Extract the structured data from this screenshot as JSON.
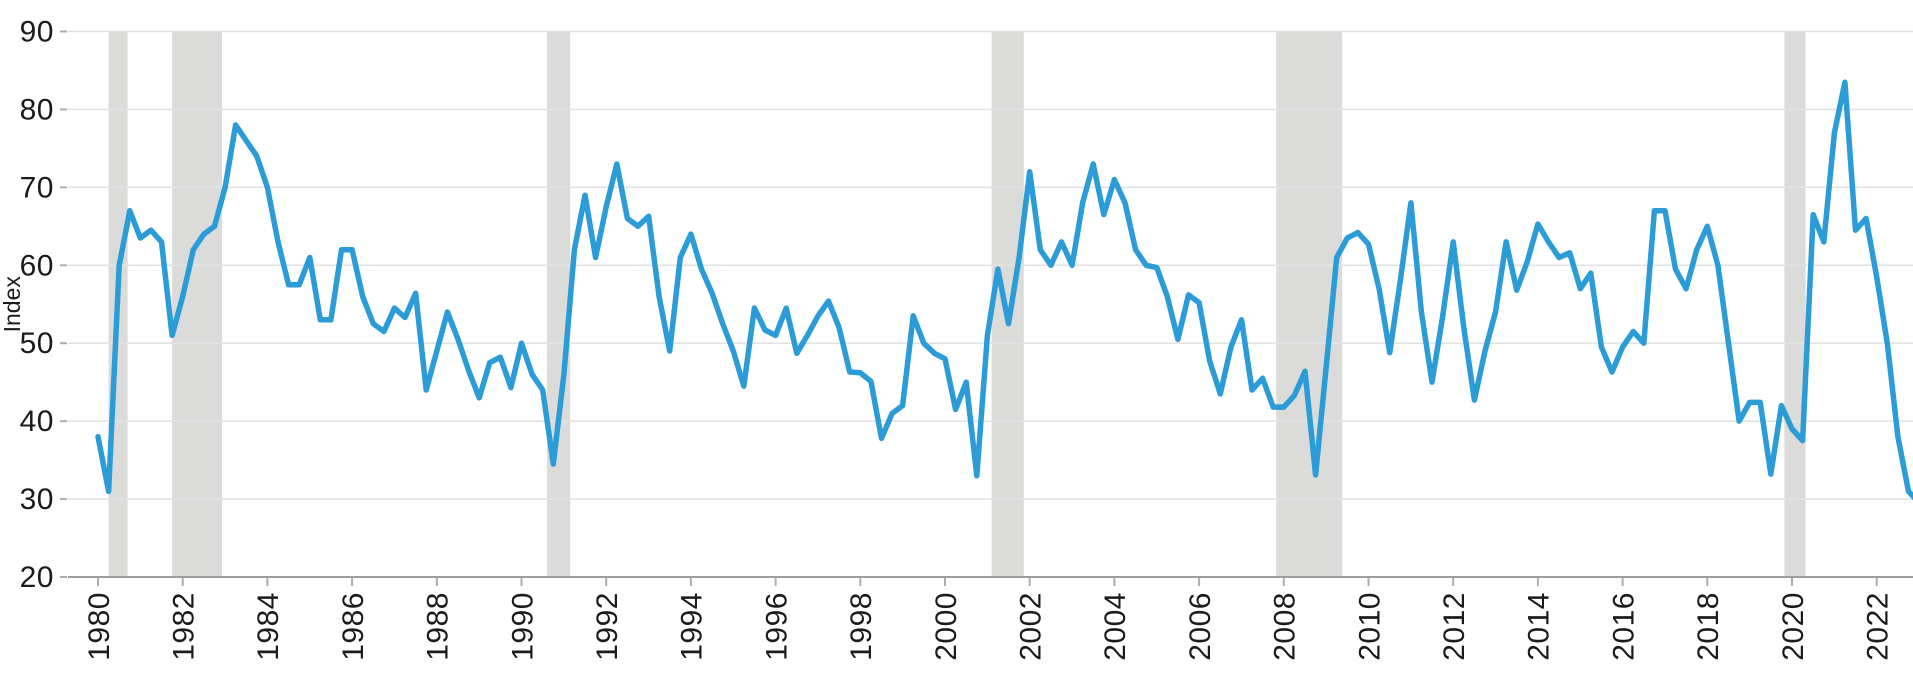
{
  "chart_data": {
    "type": "line",
    "title": "",
    "xlabel": "",
    "ylabel": "Index",
    "ylim": [
      20,
      90
    ],
    "yticks": [
      20,
      30,
      40,
      50,
      60,
      70,
      80,
      90
    ],
    "xticks": [
      1980,
      1982,
      1984,
      1986,
      1988,
      1990,
      1992,
      1994,
      1996,
      1998,
      2000,
      2002,
      2004,
      2006,
      2008,
      2010,
      2012,
      2014,
      2016,
      2018,
      2020,
      2022
    ],
    "x_start_year": 1980,
    "frequency": "quarterly",
    "grid": "horizontal",
    "legend_position": "none",
    "line_color": "#2B9CD8",
    "grid_color": "#e3e3e3",
    "axis_line_color": "#9e9e9e",
    "tick_color": "#adadad",
    "recession_band_color": "#dbdbd9",
    "recession_bands": [
      [
        1980.25,
        1980.7
      ],
      [
        1981.75,
        1982.93
      ],
      [
        1990.6,
        1991.15
      ],
      [
        2001.1,
        2001.86
      ],
      [
        2007.82,
        2009.38
      ],
      [
        2019.82,
        2020.32
      ]
    ],
    "series": [
      {
        "name": "Index",
        "values": [
          38,
          31,
          60,
          67,
          63.5,
          64.5,
          63,
          51,
          56,
          62,
          64,
          65,
          70,
          78,
          76,
          74,
          70,
          63,
          57.5,
          57.5,
          61,
          53,
          53,
          62,
          62,
          56,
          52.5,
          51.5,
          54.5,
          53.3,
          56.4,
          44,
          49,
          54,
          50.5,
          46.5,
          43,
          47.5,
          48.2,
          44.3,
          50,
          46,
          44,
          34.5,
          46,
          62,
          69,
          61,
          67.5,
          73,
          66,
          65,
          66.3,
          56,
          49,
          61,
          64,
          59.5,
          56.4,
          52.5,
          49,
          44.5,
          54.5,
          51.7,
          51,
          54.5,
          48.7,
          51,
          53.5,
          55.4,
          52,
          46.3,
          46.2,
          45.1,
          37.8,
          41,
          42,
          53.5,
          50,
          48.7,
          48,
          41.5,
          45,
          33,
          51,
          59.5,
          52.5,
          61,
          72,
          62,
          60,
          63,
          60,
          68,
          73,
          66.5,
          71,
          68,
          62,
          60,
          59.7,
          56,
          50.5,
          56.2,
          55.2,
          47.7,
          43.5,
          49.5,
          53,
          44,
          45.5,
          41.8,
          41.8,
          43.3,
          46.4,
          33.1,
          47,
          61,
          63.5,
          64.2,
          62.7,
          57,
          48.8,
          58,
          68,
          54,
          45,
          53.4,
          63,
          52,
          42.7,
          49,
          54,
          63,
          56.8,
          60.5,
          65.3,
          63,
          61,
          61.6,
          57,
          59,
          49.5,
          46.3,
          49.5,
          51.5,
          50,
          67,
          67,
          59.5,
          57,
          62,
          65,
          60,
          50,
          40,
          42.4,
          42.4,
          33.2,
          42,
          39,
          37.5,
          66.5,
          63,
          77,
          83.5,
          64.5,
          66,
          58.5,
          50,
          38,
          31,
          29.5
        ]
      }
    ]
  }
}
